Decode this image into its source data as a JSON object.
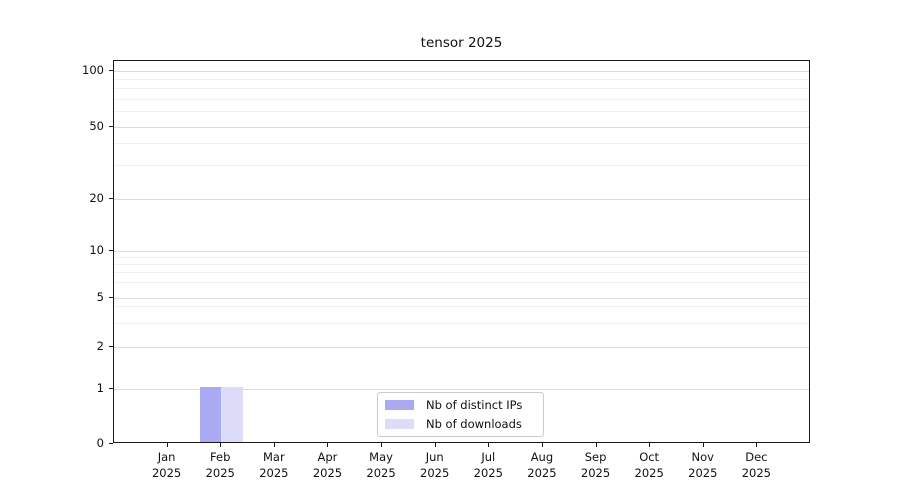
{
  "chart_data": {
    "type": "bar",
    "title": "tensor 2025",
    "x_categories": [
      {
        "label": "Jan",
        "sublabel": "2025"
      },
      {
        "label": "Feb",
        "sublabel": "2025"
      },
      {
        "label": "Mar",
        "sublabel": "2025"
      },
      {
        "label": "Apr",
        "sublabel": "2025"
      },
      {
        "label": "May",
        "sublabel": "2025"
      },
      {
        "label": "Jun",
        "sublabel": "2025"
      },
      {
        "label": "Jul",
        "sublabel": "2025"
      },
      {
        "label": "Aug",
        "sublabel": "2025"
      },
      {
        "label": "Sep",
        "sublabel": "2025"
      },
      {
        "label": "Oct",
        "sublabel": "2025"
      },
      {
        "label": "Nov",
        "sublabel": "2025"
      },
      {
        "label": "Dec",
        "sublabel": "2025"
      }
    ],
    "series": [
      {
        "name": "Nb of distinct IPs",
        "color": "#aaaaf2",
        "values": [
          0,
          1,
          0,
          0,
          0,
          0,
          0,
          0,
          0,
          0,
          0,
          0
        ]
      },
      {
        "name": "Nb of downloads",
        "color": "#dcdcf8",
        "values": [
          0,
          1,
          0,
          0,
          0,
          0,
          0,
          0,
          0,
          0,
          0,
          0
        ]
      }
    ],
    "yticks": [
      0,
      1,
      2,
      5,
      10,
      20,
      50,
      100
    ],
    "ylim": [
      0,
      100
    ],
    "yscale": "symlog",
    "grid": "horizontal major and log-minor gridlines",
    "legend_position": "lower center"
  }
}
